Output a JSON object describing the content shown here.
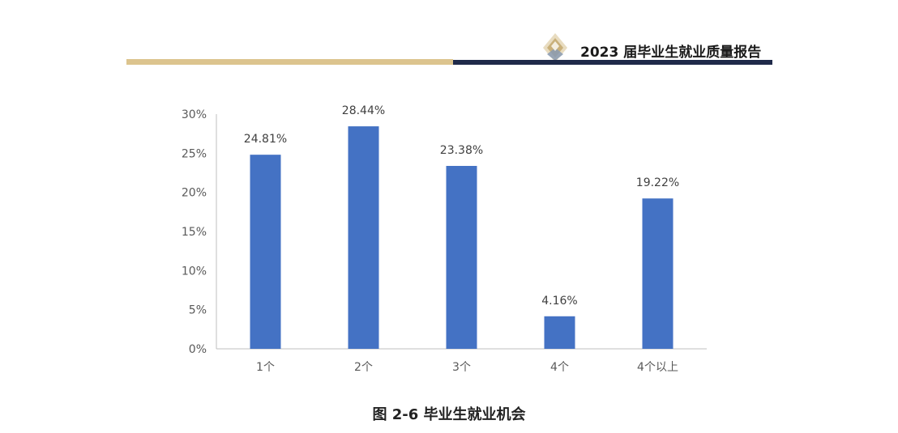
{
  "header": {
    "report_title": "2023 届毕业生就业质量报告",
    "accent_gold": "#DCC48E",
    "accent_navy": "#1F2A4A",
    "logo": "diamond-logo-icon"
  },
  "chart_data": {
    "type": "bar",
    "categories": [
      "1个",
      "2个",
      "3个",
      "4个",
      "4个以上"
    ],
    "values": [
      24.81,
      28.44,
      23.38,
      4.16,
      19.22
    ],
    "data_labels": [
      "24.81%",
      "28.44%",
      "23.38%",
      "4.16%",
      "19.22%"
    ],
    "ylim": [
      0,
      30
    ],
    "yticks": [
      0,
      5,
      10,
      15,
      20,
      25,
      30
    ],
    "ytick_labels": [
      "0%",
      "5%",
      "10%",
      "15%",
      "20%",
      "25%",
      "30%"
    ],
    "bar_color": "#4472C4",
    "grid": false,
    "legend": "none"
  },
  "caption": "图 2-6    毕业生就业机会"
}
